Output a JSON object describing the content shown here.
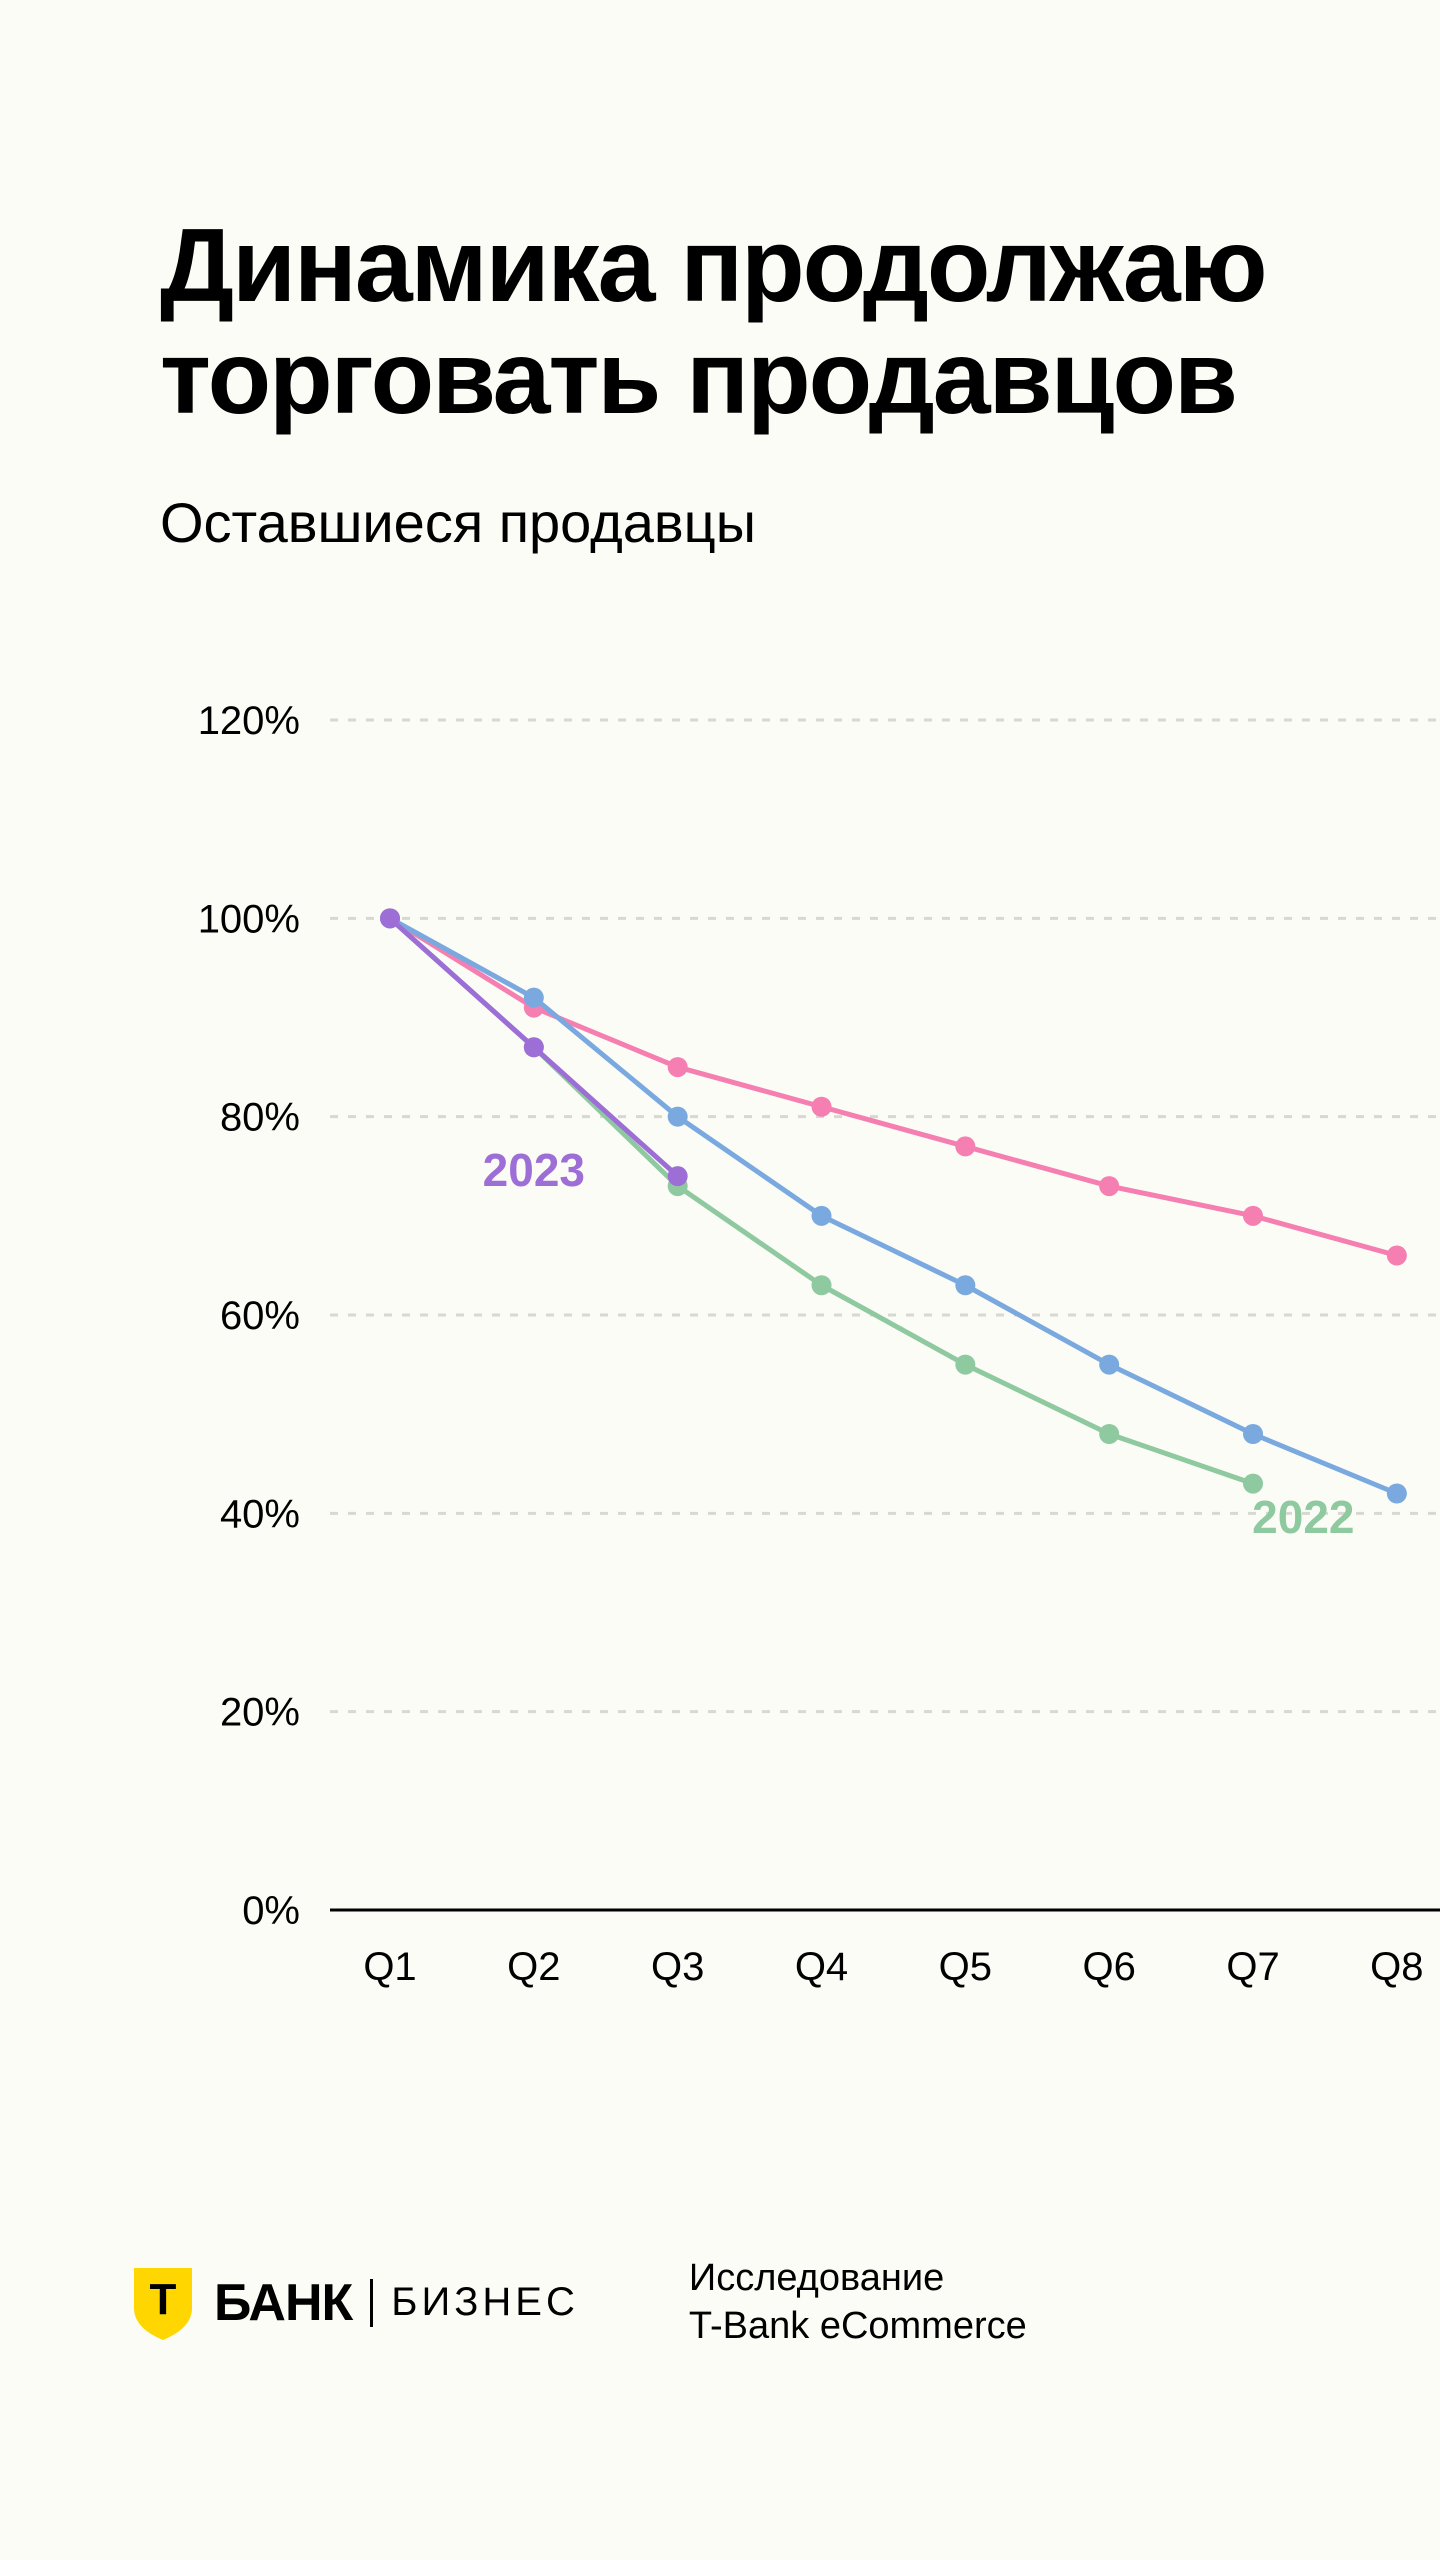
{
  "title_line1": "Динамика продолжаю",
  "title_line2": "торговать продавцов",
  "subtitle": "Оставшиеся продавцы",
  "chart": {
    "type": "line",
    "background_color": "#fcfcf7",
    "grid_color": "#d8d8d2",
    "axis_color": "#000000",
    "label_fontsize": 40,
    "series_label_fontsize": 46,
    "marker_radius": 10,
    "line_width": 5,
    "y": {
      "min": 0,
      "max": 120,
      "ticks": [
        0,
        20,
        40,
        60,
        80,
        100,
        120
      ],
      "tick_labels": [
        "0%",
        "20%",
        "40%",
        "60%",
        "80%",
        "100%",
        "120%"
      ]
    },
    "x": {
      "categories": [
        "Q1",
        "Q2",
        "Q3",
        "Q4",
        "Q5",
        "Q6",
        "Q7",
        "Q8"
      ]
    },
    "series": [
      {
        "name": "pink",
        "color": "#f47fb0",
        "values": [
          100,
          91,
          85,
          81,
          77,
          73,
          70,
          66
        ]
      },
      {
        "name": "blue",
        "color": "#7aa9e0",
        "values": [
          100,
          92,
          80,
          70,
          63,
          55,
          48,
          42
        ]
      },
      {
        "name": "2022",
        "label": "2022",
        "color": "#8fc9a0",
        "label_color": "#8fc9a0",
        "values": [
          100,
          87,
          73,
          63,
          55,
          48,
          43
        ],
        "label_pos": {
          "x_index": 6.35,
          "y": 38
        }
      },
      {
        "name": "2023",
        "label": "2023",
        "color": "#9d6fd6",
        "label_color": "#9d6fd6",
        "values": [
          100,
          87,
          74
        ],
        "label_pos": {
          "x_index": 1.0,
          "y": 73
        }
      }
    ]
  },
  "footer": {
    "logo_main": "БАНК",
    "logo_sub": "БИЗНЕС",
    "logo_letter": "Т",
    "shield_color": "#ffd600",
    "attribution_line1": "Исследование",
    "attribution_line2": "T-Bank eCommerce"
  }
}
